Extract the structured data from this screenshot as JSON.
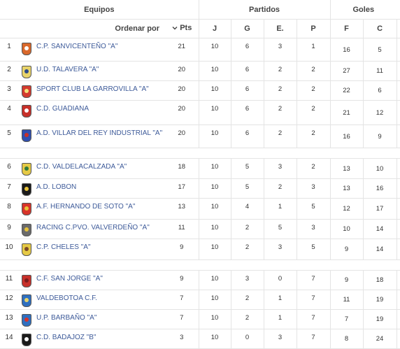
{
  "groups": {
    "teams": "Equipos",
    "matches": "Partidos",
    "goals": "Goles"
  },
  "headers": {
    "order_by": "Ordenar por",
    "pts": "Pts",
    "j": "J",
    "g": "G",
    "e": "E.",
    "p": "P",
    "f": "F",
    "c": "C"
  },
  "icons": {
    "sort": "chevron-down-icon"
  },
  "rows": [
    {
      "pos": "1",
      "team": "C.P. SANVICENTEÑO \"A\"",
      "pts": "21",
      "j": "10",
      "g": "6",
      "e": "3",
      "p": "1",
      "f": "16",
      "c": "5",
      "crest": [
        "#d9682b",
        "#ffffff"
      ]
    },
    {
      "pos": "2",
      "team": "U.D. TALAVERA \"A\"",
      "pts": "20",
      "j": "10",
      "g": "6",
      "e": "2",
      "p": "2",
      "f": "27",
      "c": "11",
      "crest": [
        "#e8d36a",
        "#2c4a8a"
      ]
    },
    {
      "pos": "3",
      "team": "SPORT CLUB LA GARROVILLA \"A\"",
      "pts": "20",
      "j": "10",
      "g": "6",
      "e": "2",
      "p": "2",
      "f": "22",
      "c": "6",
      "crest": [
        "#d33b2f",
        "#f3e27a"
      ]
    },
    {
      "pos": "4",
      "team": "C.D. GUADIANA",
      "pts": "20",
      "j": "10",
      "g": "6",
      "e": "2",
      "p": "2",
      "f": "21",
      "c": "12",
      "crest": [
        "#c7302a",
        "#ffffff"
      ]
    },
    {
      "pos": "5",
      "team": "A.D. VILLAR DEL REY INDUSTRIAL \"A\"",
      "pts": "20",
      "j": "10",
      "g": "6",
      "e": "2",
      "p": "2",
      "f": "16",
      "c": "9",
      "crest": [
        "#2f4fb0",
        "#c7302a"
      ]
    },
    {
      "gap": true
    },
    {
      "pos": "6",
      "team": "C.D. VALDELACALZADA \"A\"",
      "pts": "18",
      "j": "10",
      "g": "5",
      "e": "3",
      "p": "2",
      "f": "13",
      "c": "10",
      "crest": [
        "#e5c945",
        "#2f7a3d"
      ]
    },
    {
      "pos": "7",
      "team": "A.D. LOBON",
      "pts": "17",
      "j": "10",
      "g": "5",
      "e": "2",
      "p": "3",
      "f": "13",
      "c": "16",
      "crest": [
        "#1a1a1a",
        "#e8c33a"
      ]
    },
    {
      "pos": "8",
      "team": "A.F. HERNANDO DE SOTO \"A\"",
      "pts": "13",
      "j": "10",
      "g": "4",
      "e": "1",
      "p": "5",
      "f": "12",
      "c": "17",
      "crest": [
        "#d7342a",
        "#e8c33a"
      ]
    },
    {
      "pos": "9",
      "team": "RACING C.PVO. VALVERDEÑO \"A\"",
      "pts": "11",
      "j": "10",
      "g": "2",
      "e": "5",
      "p": "3",
      "f": "10",
      "c": "14",
      "crest": [
        "#6b6b6b",
        "#e8c33a"
      ]
    },
    {
      "pos": "10",
      "team": "C.P. CHELES \"A\"",
      "pts": "9",
      "j": "10",
      "g": "2",
      "e": "3",
      "p": "5",
      "f": "9",
      "c": "14",
      "crest": [
        "#e5c945",
        "#7a4a2a"
      ]
    },
    {
      "gap": true
    },
    {
      "pos": "11",
      "team": "C.F. SAN JORGE \"A\"",
      "pts": "9",
      "j": "10",
      "g": "3",
      "e": "0",
      "p": "7",
      "f": "9",
      "c": "18",
      "crest": [
        "#c7302a",
        "#7a1d1d"
      ]
    },
    {
      "pos": "12",
      "team": "VALDEBOTOA C.F.",
      "pts": "7",
      "j": "10",
      "g": "2",
      "e": "1",
      "p": "7",
      "f": "11",
      "c": "19",
      "crest": [
        "#2f6fbf",
        "#e8d36a"
      ]
    },
    {
      "pos": "13",
      "team": "U.P. BARBAÑO \"A\"",
      "pts": "7",
      "j": "10",
      "g": "2",
      "e": "1",
      "p": "7",
      "f": "7",
      "c": "19",
      "crest": [
        "#2f6fbf",
        "#d7342a"
      ]
    },
    {
      "pos": "14",
      "team": "C.D. BADAJOZ \"B\"",
      "pts": "3",
      "j": "10",
      "g": "0",
      "e": "3",
      "p": "7",
      "f": "8",
      "c": "24",
      "crest": [
        "#1a1a1a",
        "#ffffff"
      ]
    }
  ]
}
